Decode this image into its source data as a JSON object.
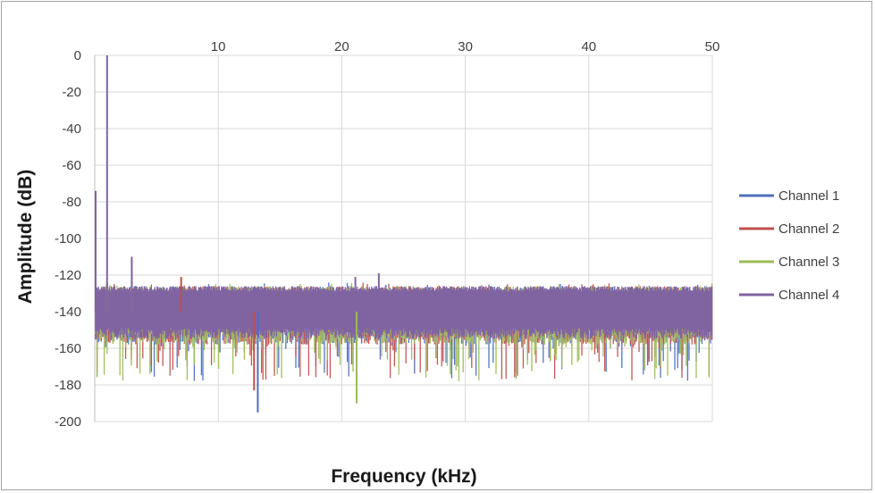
{
  "chart_data": {
    "type": "line",
    "title": "",
    "xlabel": "Frequency (kHz)",
    "ylabel": "Amplitude (dB)",
    "xlim": [
      0,
      50
    ],
    "ylim": [
      -200,
      0
    ],
    "x_ticks": [
      "10",
      "20",
      "30",
      "40",
      "50"
    ],
    "y_ticks": [
      "0",
      "-20",
      "-40",
      "-60",
      "-80",
      "-100",
      "-120",
      "-140",
      "-160",
      "-180",
      "-200"
    ],
    "x_tick_position": "top",
    "grid": true,
    "legend_position": "right",
    "series": [
      {
        "name": "Channel 1",
        "color": "#4f6fbd",
        "noise_floor_db": -140,
        "peaks": [
          {
            "x": 1,
            "y": -125
          },
          {
            "x": 13.2,
            "y": -195
          }
        ]
      },
      {
        "name": "Channel 2",
        "color": "#c0504d",
        "noise_floor_db": -140,
        "peaks": [
          {
            "x": 1,
            "y": -124
          },
          {
            "x": 12.9,
            "y": -183
          },
          {
            "x": 7,
            "y": -121
          }
        ]
      },
      {
        "name": "Channel 3",
        "color": "#9bbb59",
        "noise_floor_db": -140,
        "peaks": [
          {
            "x": 1,
            "y": -124
          },
          {
            "x": 3,
            "y": -110
          },
          {
            "x": 21.2,
            "y": -190
          }
        ]
      },
      {
        "name": "Channel 4",
        "color": "#8064a2",
        "noise_floor_db": -140,
        "peaks": [
          {
            "x": 0,
            "y": -74
          },
          {
            "x": 1,
            "y": 0
          },
          {
            "x": 3,
            "y": -110
          },
          {
            "x": 21.1,
            "y": -121
          },
          {
            "x": 23,
            "y": -119
          }
        ]
      }
    ]
  }
}
